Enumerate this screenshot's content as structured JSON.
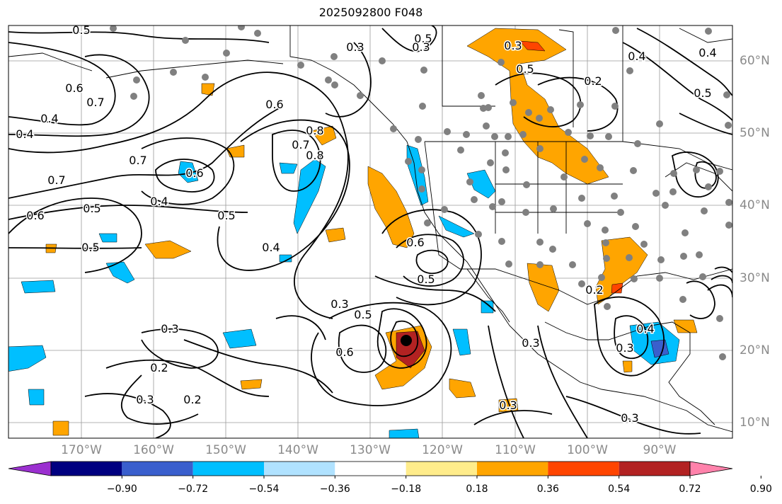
{
  "title": "2025092800 F048",
  "lat_labels": [
    "60°N",
    "50°N",
    "40°N",
    "30°N",
    "20°N",
    "10°N"
  ],
  "lon_labels": [
    "170°W",
    "160°W",
    "150°W",
    "140°W",
    "130°W",
    "120°W",
    "110°W",
    "100°W",
    "90°W"
  ],
  "colorbar": {
    "ticks": [
      "−0.90",
      "−0.72",
      "−0.54",
      "−0.36",
      "−0.18",
      "0.18",
      "0.36",
      "0.54",
      "0.72",
      "0.90"
    ],
    "colors": [
      "#9b30d0",
      "#000080",
      "#3a5fcd",
      "#00bfff",
      "#b0e2ff",
      "#ffffff",
      "#ffec8b",
      "#ffa500",
      "#ff4500",
      "#b22222",
      "#ff82ab"
    ]
  },
  "contour_labels": [
    "0.5",
    "0.3",
    "0.5",
    "0.3",
    "0.5",
    "0.2",
    "0.4",
    "0.4",
    "0.5",
    "0.6",
    "0.4",
    "0.6",
    "0.7",
    "0.8",
    "0.7",
    "0.8",
    "0.4",
    "0.7",
    "0.6",
    "0.5",
    "0.5",
    "0.4",
    "0.6",
    "0.7",
    "0.5",
    "0.3",
    "0.4",
    "0.6",
    "0.5",
    "0.5",
    "0.6",
    "0.3",
    "0.2",
    "0.3",
    "0.2",
    "0.3",
    "0.4",
    "0.3",
    "0.3",
    "0.2",
    "0.3",
    "0.3"
  ],
  "colors": {
    "land_outline": "#000000",
    "grid": "#9a9a9a",
    "contour": "#000000",
    "station_dot": "#808080",
    "positive_fill": "#ffa500",
    "negative_fill": "#00bfff"
  }
}
